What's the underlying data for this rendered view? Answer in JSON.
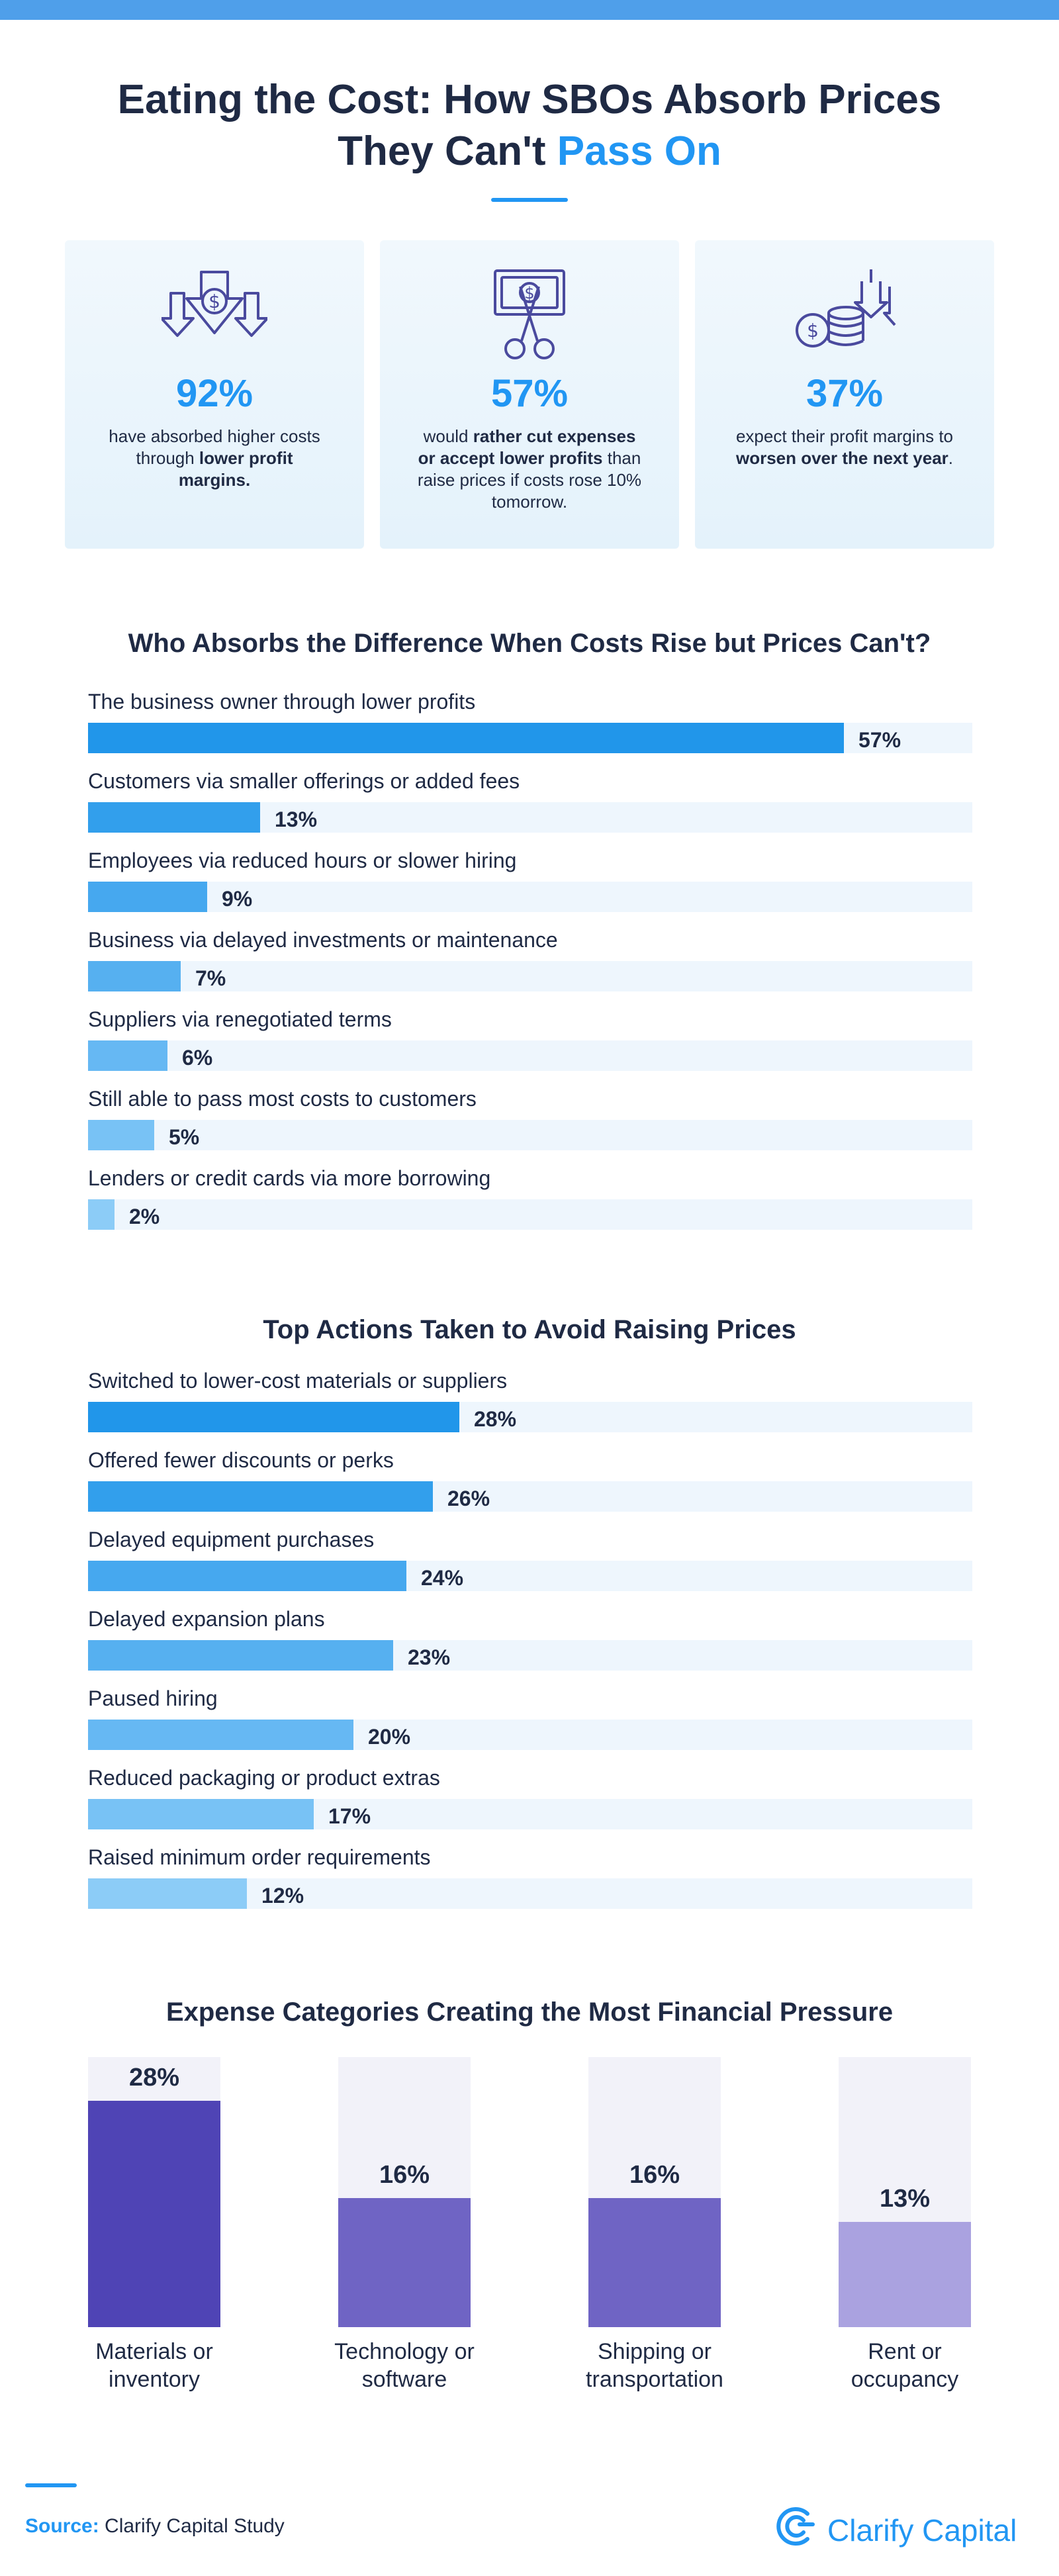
{
  "header": {
    "title_line1": "Eating the Cost: How SBOs Absorb Prices",
    "title_line2_prefix": "They Can't ",
    "title_line2_accent": "Pass On"
  },
  "colors": {
    "accent": "#2196f3",
    "navy": "#1f2a44",
    "track": "#eef6fd",
    "purple_dark": "#4f44b5",
    "purple_mid": "#6f64c4",
    "purple_light": "#aaa2e0"
  },
  "cards": [
    {
      "icon": "down-arrows-dollar-icon",
      "pct": "92%",
      "desc_pre": "have absorbed higher costs through ",
      "desc_bold": "lower profit margins.",
      "desc_post": ""
    },
    {
      "icon": "scissors-cash-icon",
      "pct": "57%",
      "desc_pre": "would ",
      "desc_bold": "rather cut expenses or accept lower profits",
      "desc_post": " than raise prices if costs rose 10% tomorrow."
    },
    {
      "icon": "coins-down-arrows-icon",
      "pct": "37%",
      "desc_pre": "expect their profit margins to ",
      "desc_bold": "worsen over the next year",
      "desc_post": "."
    }
  ],
  "chart_data": [
    {
      "type": "bar",
      "orientation": "horizontal",
      "title": "Who Absorbs the Difference When Costs Rise but Prices Can't?",
      "categories": [
        "The business owner through lower profits",
        "Customers via smaller offerings or added fees",
        "Employees via reduced hours or slower hiring",
        "Business via delayed investments or maintenance",
        "Suppliers via renegotiated terms",
        "Still able to pass most costs to customers",
        "Lenders or credit cards via more borrowing"
      ],
      "values": [
        57,
        13,
        9,
        7,
        6,
        5,
        2
      ],
      "labels": [
        "57%",
        "13%",
        "9%",
        "7%",
        "6%",
        "5%",
        "2%"
      ],
      "colors": [
        "#2196ea",
        "#329fec",
        "#46a8ef",
        "#56b0f0",
        "#66b8f3",
        "#78c2f5",
        "#8cccf7"
      ],
      "xlim": [
        0,
        66.7
      ]
    },
    {
      "type": "bar",
      "orientation": "horizontal",
      "title": "Top Actions Taken to Avoid Raising Prices",
      "categories": [
        "Switched to lower-cost materials or suppliers",
        "Offered fewer discounts or perks",
        "Delayed equipment purchases",
        "Delayed expansion plans",
        "Paused hiring",
        "Reduced packaging or product extras",
        "Raised minimum order requirements"
      ],
      "values": [
        28,
        26,
        24,
        23,
        20,
        17,
        12
      ],
      "labels": [
        "28%",
        "26%",
        "24%",
        "23%",
        "20%",
        "17%",
        "12%"
      ],
      "colors": [
        "#2196ea",
        "#329fec",
        "#46a8ef",
        "#56b0f0",
        "#66b8f3",
        "#78c2f5",
        "#8cccf7"
      ],
      "xlim": [
        0,
        66.7
      ]
    },
    {
      "type": "bar",
      "orientation": "vertical",
      "title": "Expense Categories Creating the Most Financial Pressure",
      "categories": [
        "Materials or inventory",
        "Technology or software",
        "Shipping or transportation",
        "Rent or occupancy"
      ],
      "values": [
        28,
        16,
        16,
        13
      ],
      "labels": [
        "28%",
        "16%",
        "16%",
        "13%"
      ],
      "colors": [
        "#4f44b5",
        "#6f64c4",
        "#6f64c4",
        "#aaa2e0"
      ],
      "ylim": [
        0,
        33.4
      ]
    }
  ],
  "footer": {
    "source_label": "Source:",
    "source_text": " Clarify Capital Study",
    "brand": "Clarify Capital",
    "brand_icon": "clarify-logo-icon"
  }
}
